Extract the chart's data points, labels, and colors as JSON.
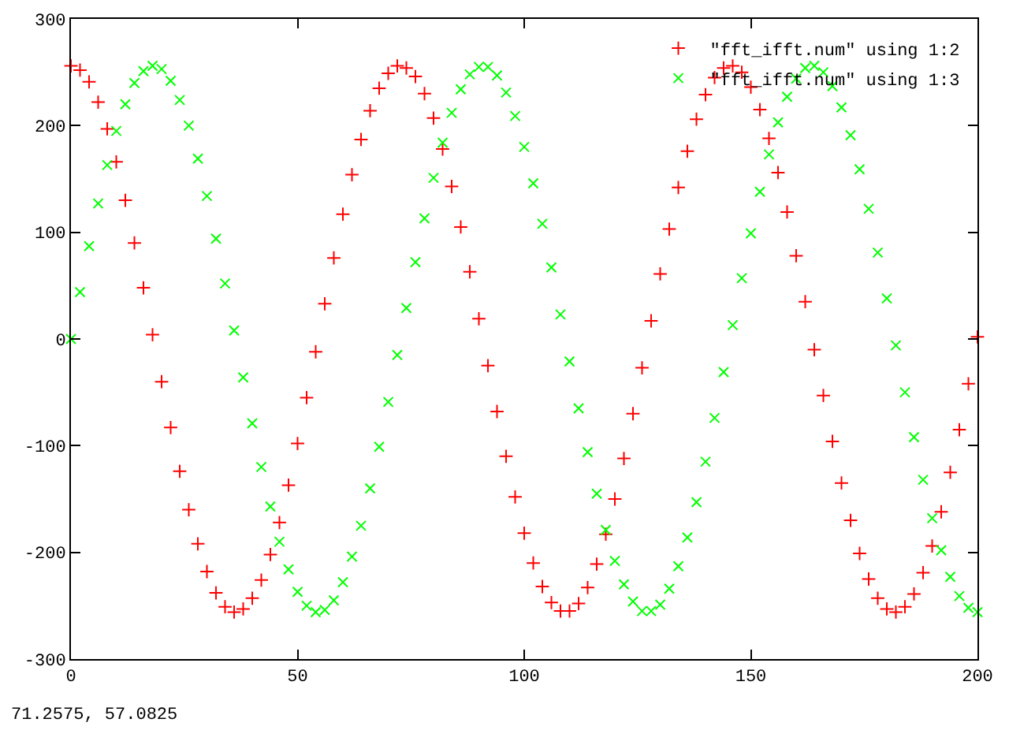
{
  "chart_data": {
    "type": "scatter",
    "x": [
      0,
      2,
      4,
      6,
      8,
      10,
      12,
      14,
      16,
      18,
      20,
      22,
      24,
      26,
      28,
      30,
      32,
      34,
      36,
      38,
      40,
      42,
      44,
      46,
      48,
      50,
      52,
      54,
      56,
      58,
      60,
      62,
      64,
      66,
      68,
      70,
      72,
      74,
      76,
      78,
      80,
      82,
      84,
      86,
      88,
      90,
      92,
      94,
      96,
      98,
      100,
      102,
      104,
      106,
      108,
      110,
      112,
      114,
      116,
      118,
      120,
      122,
      124,
      126,
      128,
      130,
      132,
      134,
      136,
      138,
      140,
      142,
      144,
      146,
      148,
      150,
      152,
      154,
      156,
      158,
      160,
      162,
      164,
      166,
      168,
      170,
      172,
      174,
      176,
      178,
      180,
      182,
      184,
      186,
      188,
      190,
      192,
      194,
      196,
      198,
      200
    ],
    "series": [
      {
        "name": "\"fft_ifft.num\" using 1:2",
        "color": "#ff0000",
        "marker": "cross",
        "values": [
          256,
          252,
          241,
          222,
          197,
          166,
          130,
          90,
          48,
          4,
          -40,
          -83,
          -124,
          -160,
          -192,
          -218,
          -238,
          -251,
          -256,
          -253,
          -243,
          -226,
          -202,
          -172,
          -137,
          -98,
          -55,
          -12,
          33,
          76,
          117,
          154,
          187,
          214,
          235,
          249,
          256,
          254,
          246,
          230,
          207,
          178,
          143,
          105,
          63,
          19,
          -25,
          -68,
          -110,
          -148,
          -182,
          -210,
          -232,
          -247,
          -255,
          -255,
          -248,
          -233,
          -211,
          -183,
          -150,
          -112,
          -70,
          -27,
          17,
          61,
          103,
          142,
          176,
          206,
          229,
          245,
          254,
          256,
          250,
          236,
          215,
          188,
          156,
          119,
          78,
          35,
          -10,
          -53,
          -96,
          -135,
          -170,
          -201,
          -225,
          -243,
          -253,
          -256,
          -251,
          -239,
          -219,
          -194,
          -162,
          -125,
          -85,
          -42,
          2
        ]
      },
      {
        "name": "\"fft_ifft.num\" using 1:3",
        "color": "#00ff00",
        "marker": "x",
        "values": [
          0,
          44,
          87,
          127,
          163,
          195,
          220,
          240,
          251,
          256,
          253,
          242,
          224,
          200,
          169,
          134,
          94,
          52,
          8,
          -36,
          -79,
          -120,
          -157,
          -190,
          -216,
          -237,
          -250,
          -256,
          -254,
          -245,
          -228,
          -204,
          -175,
          -140,
          -101,
          -59,
          -15,
          29,
          72,
          113,
          151,
          184,
          212,
          234,
          248,
          255,
          255,
          247,
          231,
          209,
          180,
          146,
          108,
          67,
          23,
          -21,
          -65,
          -106,
          -145,
          -179,
          -208,
          -230,
          -246,
          -255,
          -255,
          -249,
          -234,
          -213,
          -186,
          -153,
          -115,
          -74,
          -31,
          13,
          57,
          99,
          138,
          173,
          203,
          227,
          244,
          254,
          256,
          250,
          237,
          217,
          191,
          159,
          122,
          81,
          38,
          -6,
          -50,
          -92,
          -132,
          -168,
          -198,
          -223,
          -241,
          -252,
          -256
        ]
      }
    ],
    "xlim": [
      0,
      200
    ],
    "xticks": [
      0,
      50,
      100,
      150,
      200
    ],
    "ylim": [
      -300,
      300
    ],
    "yticks": [
      -300,
      -200,
      -100,
      0,
      100,
      200,
      300
    ],
    "legend": "top right",
    "annotations": [
      "71.2575, 57.0825"
    ]
  }
}
